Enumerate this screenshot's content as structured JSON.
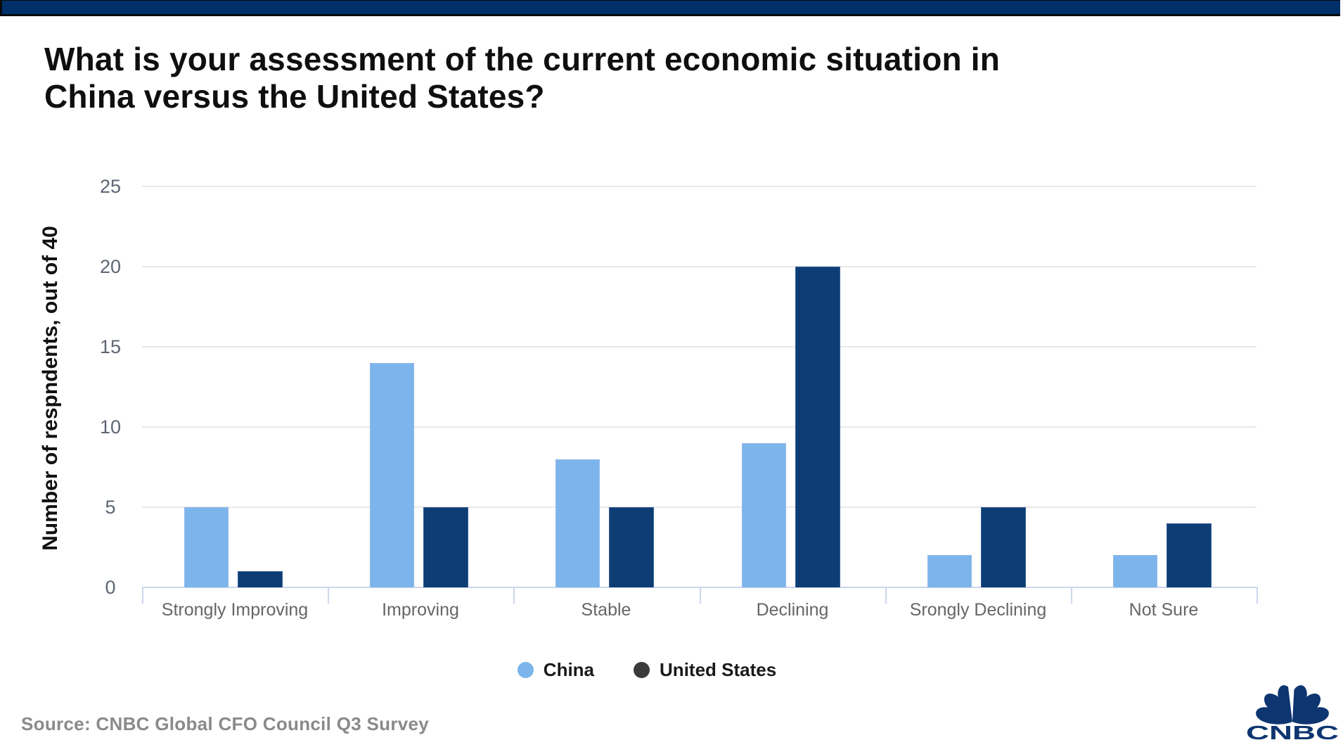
{
  "header": {
    "bar_color": "#003069"
  },
  "title": {
    "text": "What is your assessment of the current economic situation in\nChina versus the United States?"
  },
  "chart_data": {
    "type": "bar",
    "title": "What is your assessment of the current economic situation in China versus the United States?",
    "categories": [
      "Strongly Improving",
      "Improving",
      "Stable",
      "Declining",
      "Srongly Declining",
      "Not Sure"
    ],
    "series": [
      {
        "name": "China",
        "color": "#7cb5ec",
        "border_color": "#93b9e8",
        "legend_marker_color": "#7cb5ec",
        "values": [
          5,
          14,
          8,
          9,
          2,
          2
        ]
      },
      {
        "name": "United States",
        "color": "#0e3d73",
        "border_color": "#35619c",
        "legend_marker_color": "#3b3b3b",
        "values": [
          1,
          5,
          5,
          20,
          5,
          4
        ]
      }
    ],
    "xlabel": "",
    "ylabel": "Number of respndents, out of 40",
    "yticks": [
      0,
      5,
      10,
      15,
      20,
      25
    ],
    "ylim": [
      0,
      25
    ],
    "grid": true,
    "legend_position": "bottom-center",
    "gridline_color": "#e8e8e8",
    "axis_color": "#ccd6eb",
    "ytick_label_color": "#5d6673",
    "xtick_label_color": "#666666"
  },
  "source": {
    "text": "Source: CNBC Global CFO Council Q3 Survey"
  },
  "logo": {
    "text": "CNBC",
    "color": "#0d3570"
  }
}
